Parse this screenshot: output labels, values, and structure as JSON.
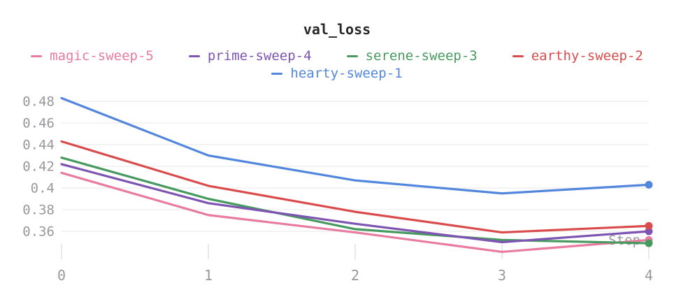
{
  "chart_data": {
    "type": "line",
    "title": "val_loss",
    "xlabel": "Step",
    "ylabel": "",
    "x": [
      0,
      1,
      2,
      3,
      4
    ],
    "x_tick_labels": [
      "0",
      "1",
      "2",
      "3",
      "4"
    ],
    "y_ticks": [
      0.48,
      0.46,
      0.44,
      0.42,
      0.4,
      0.38,
      0.36
    ],
    "y_tick_labels": [
      "0.48",
      "0.46",
      "0.44",
      "0.42",
      "0.4",
      "0.38",
      "0.36"
    ],
    "ylim": [
      0.335,
      0.492
    ],
    "grid": "horizontal-only",
    "legend_position": "top",
    "legend_rows": [
      [
        0,
        1,
        2,
        3
      ],
      [
        4
      ]
    ],
    "z_order": [
      0,
      2,
      1,
      3,
      4
    ],
    "end_markers": true,
    "series": [
      {
        "name": "magic-sweep-5",
        "color": "#E87B9F",
        "values": [
          0.414,
          0.375,
          0.359,
          0.341,
          0.352
        ]
      },
      {
        "name": "prime-sweep-4",
        "color": "#7D54B2",
        "values": [
          0.422,
          0.386,
          0.367,
          0.35,
          0.36
        ]
      },
      {
        "name": "serene-sweep-3",
        "color": "#479A5F",
        "values": [
          0.428,
          0.39,
          0.362,
          0.352,
          0.349
        ]
      },
      {
        "name": "earthy-sweep-2",
        "color": "#DA4C4C",
        "values": [
          0.443,
          0.402,
          0.378,
          0.359,
          0.365
        ]
      },
      {
        "name": "hearty-sweep-1",
        "color": "#5387DD",
        "values": [
          0.483,
          0.43,
          0.407,
          0.395,
          0.403
        ]
      }
    ]
  },
  "colors": {
    "title_text": "#26262b",
    "axis_text": "#98989e",
    "gridline": "#ececee",
    "tick_mark": "#e3e3e6",
    "background": "#ffffff"
  }
}
